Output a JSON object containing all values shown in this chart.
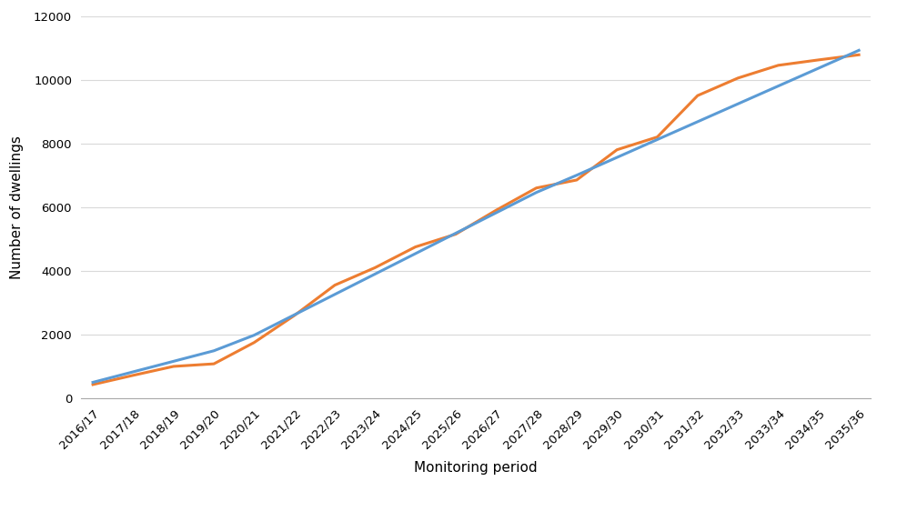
{
  "categories": [
    "2016/17",
    "2017/18",
    "2018/19",
    "2019/20",
    "2020/21",
    "2021/22",
    "2022/23",
    "2023/24",
    "2024/25",
    "2025/26",
    "2026/27",
    "2027/28",
    "2028/29",
    "2029/30",
    "2030/31",
    "2031/32",
    "2032/33",
    "2033/34",
    "2034/35",
    "2035/36"
  ],
  "requirement": [
    500,
    830,
    1160,
    1490,
    1980,
    2620,
    3260,
    3900,
    4540,
    5180,
    5820,
    6460,
    7000,
    7560,
    8120,
    8680,
    9240,
    9800,
    10360,
    10920
  ],
  "supply": [
    430,
    720,
    1000,
    1080,
    1750,
    2600,
    3550,
    4100,
    4750,
    5150,
    5900,
    6600,
    6850,
    7800,
    8200,
    9500,
    10050,
    10450,
    10620,
    10780
  ],
  "requirement_color": "#5B9BD5",
  "supply_color": "#ED7D31",
  "ylabel": "Number of dwellings",
  "xlabel": "Monitoring period",
  "ylim": [
    0,
    12000
  ],
  "yticks": [
    0,
    2000,
    4000,
    6000,
    8000,
    10000,
    12000
  ],
  "background_color": "#FFFFFF",
  "grid_color": "#D9D9D9",
  "line_width": 2.2,
  "legend_marker_linewidth": 6
}
